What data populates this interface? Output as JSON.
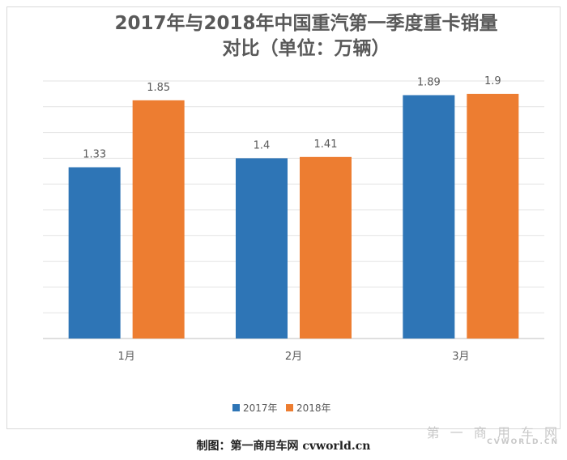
{
  "chart_data": {
    "type": "bar",
    "title": "2017年与2018年中国重汽第一季度重卡销量",
    "subtitle": "对比（单位：万辆）",
    "categories": [
      "1月",
      "2月",
      "3月"
    ],
    "series": [
      {
        "name": "2017年",
        "values": [
          1.33,
          1.4,
          1.89
        ],
        "color": "#2e75b6"
      },
      {
        "name": "2018年",
        "values": [
          1.85,
          1.41,
          1.9
        ],
        "color": "#ed7d31"
      }
    ],
    "ylim": [
      0,
      2.0
    ],
    "grid": true,
    "legend": "bottom"
  },
  "credit": "制图：第一商用车网 cvworld.cn",
  "watermark": {
    "main": "第 一 商 用 车 网",
    "sub": "CVWORLD.CN"
  }
}
